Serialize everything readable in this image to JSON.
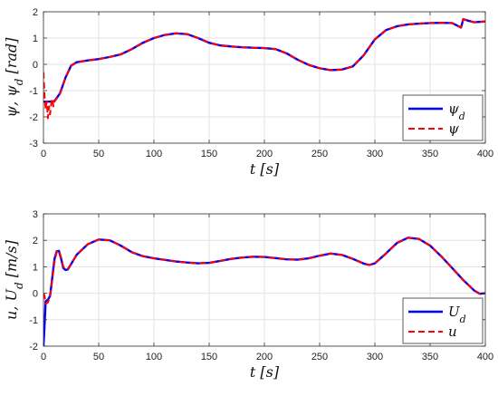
{
  "chart_data": [
    {
      "type": "line",
      "ylabel": "ψ, ψ_d [rad]",
      "xlabel": "t [s]",
      "xlim": [
        0,
        400
      ],
      "ylim": [
        -3,
        2
      ],
      "xticks": [
        "0",
        "50",
        "100",
        "150",
        "200",
        "250",
        "300",
        "350",
        "400"
      ],
      "yticks": [
        "-3",
        "-2",
        "-1",
        "0",
        "1",
        "2"
      ],
      "grid": true,
      "legend": "bottom-right",
      "series": [
        {
          "name": "ψ_d",
          "color": "#0000ff",
          "style": "solid",
          "x": [
            0,
            5,
            10,
            15,
            20,
            25,
            30,
            40,
            50,
            60,
            70,
            80,
            90,
            100,
            110,
            120,
            130,
            140,
            150,
            160,
            170,
            180,
            190,
            200,
            210,
            220,
            230,
            240,
            250,
            260,
            270,
            280,
            290,
            300,
            310,
            320,
            330,
            340,
            350,
            360,
            370,
            378,
            380,
            383,
            390,
            400
          ],
          "y": [
            -1.42,
            -1.42,
            -1.4,
            -1.1,
            -0.5,
            -0.05,
            0.08,
            0.15,
            0.2,
            0.28,
            0.38,
            0.58,
            0.82,
            1.0,
            1.12,
            1.18,
            1.15,
            1.0,
            0.82,
            0.72,
            0.68,
            0.65,
            0.63,
            0.62,
            0.58,
            0.42,
            0.18,
            -0.02,
            -0.15,
            -0.22,
            -0.2,
            -0.08,
            0.35,
            0.95,
            1.3,
            1.45,
            1.52,
            1.55,
            1.57,
            1.58,
            1.57,
            1.4,
            1.72,
            1.68,
            1.6,
            1.63
          ]
        },
        {
          "name": "ψ",
          "color": "#ff0000",
          "style": "dashed",
          "x": [
            0,
            1,
            2,
            3,
            4,
            5,
            6,
            7,
            8,
            9,
            10,
            12,
            14,
            16,
            20,
            25,
            30,
            40,
            50,
            60,
            70,
            80,
            90,
            100,
            110,
            120,
            130,
            140,
            150,
            160,
            170,
            180,
            190,
            200,
            210,
            220,
            230,
            240,
            250,
            260,
            270,
            280,
            290,
            300,
            310,
            320,
            330,
            340,
            350,
            360,
            370,
            378,
            380,
            383,
            390,
            400
          ],
          "y": [
            -0.3,
            -1.2,
            -1.7,
            -1.4,
            -2.05,
            -1.6,
            -1.9,
            -1.5,
            -1.3,
            -1.6,
            -1.4,
            -1.3,
            -1.2,
            -1.0,
            -0.5,
            -0.05,
            0.08,
            0.15,
            0.2,
            0.28,
            0.38,
            0.58,
            0.82,
            1.0,
            1.12,
            1.18,
            1.15,
            1.0,
            0.82,
            0.72,
            0.68,
            0.65,
            0.63,
            0.62,
            0.58,
            0.42,
            0.18,
            -0.02,
            -0.15,
            -0.22,
            -0.2,
            -0.08,
            0.35,
            0.95,
            1.3,
            1.45,
            1.52,
            1.55,
            1.57,
            1.58,
            1.57,
            1.4,
            1.72,
            1.68,
            1.6,
            1.63
          ]
        }
      ]
    },
    {
      "type": "line",
      "ylabel": "u, U_d [m/s]",
      "xlabel": "t [s]",
      "xlim": [
        0,
        400
      ],
      "ylim": [
        -2,
        3
      ],
      "xticks": [
        "0",
        "50",
        "100",
        "150",
        "200",
        "250",
        "300",
        "350",
        "400"
      ],
      "yticks": [
        "-2",
        "-1",
        "0",
        "1",
        "2",
        "3"
      ],
      "grid": true,
      "legend": "bottom-right",
      "series": [
        {
          "name": "U_d",
          "color": "#0000ff",
          "style": "solid",
          "x": [
            0,
            1,
            2,
            4,
            6,
            8,
            10,
            12,
            14,
            16,
            18,
            20,
            22,
            25,
            30,
            40,
            50,
            60,
            70,
            80,
            90,
            100,
            110,
            120,
            130,
            140,
            150,
            160,
            170,
            180,
            190,
            200,
            210,
            220,
            230,
            240,
            250,
            260,
            270,
            280,
            290,
            295,
            300,
            310,
            320,
            330,
            340,
            350,
            360,
            370,
            380,
            390,
            395,
            400
          ],
          "y": [
            -2.0,
            -1.2,
            -0.3,
            -0.25,
            -0.1,
            0.6,
            1.3,
            1.58,
            1.6,
            1.3,
            0.95,
            0.88,
            0.9,
            1.1,
            1.45,
            1.85,
            2.03,
            2.0,
            1.8,
            1.55,
            1.4,
            1.32,
            1.26,
            1.2,
            1.16,
            1.13,
            1.15,
            1.22,
            1.3,
            1.35,
            1.38,
            1.37,
            1.33,
            1.28,
            1.27,
            1.32,
            1.42,
            1.5,
            1.45,
            1.3,
            1.12,
            1.07,
            1.13,
            1.5,
            1.9,
            2.1,
            2.05,
            1.8,
            1.4,
            0.95,
            0.5,
            0.1,
            -0.02,
            0.0
          ]
        },
        {
          "name": "u",
          "color": "#ff0000",
          "style": "dashed",
          "x": [
            0,
            1,
            2,
            4,
            6,
            8,
            10,
            12,
            14,
            16,
            18,
            20,
            22,
            25,
            30,
            40,
            50,
            60,
            70,
            80,
            90,
            100,
            110,
            120,
            130,
            140,
            150,
            160,
            170,
            180,
            190,
            200,
            210,
            220,
            230,
            240,
            250,
            260,
            270,
            280,
            290,
            295,
            300,
            310,
            320,
            330,
            340,
            350,
            360,
            370,
            380,
            390,
            395,
            400
          ],
          "y": [
            0.0,
            -0.1,
            -0.4,
            -0.35,
            -0.1,
            0.5,
            1.2,
            1.55,
            1.62,
            1.35,
            1.0,
            0.9,
            0.92,
            1.1,
            1.45,
            1.85,
            2.03,
            2.0,
            1.8,
            1.55,
            1.4,
            1.32,
            1.26,
            1.2,
            1.16,
            1.13,
            1.15,
            1.22,
            1.3,
            1.35,
            1.38,
            1.37,
            1.33,
            1.28,
            1.27,
            1.32,
            1.42,
            1.5,
            1.45,
            1.3,
            1.12,
            1.07,
            1.13,
            1.5,
            1.9,
            2.1,
            2.05,
            1.8,
            1.4,
            0.95,
            0.5,
            0.1,
            -0.02,
            0.0
          ]
        }
      ]
    }
  ]
}
